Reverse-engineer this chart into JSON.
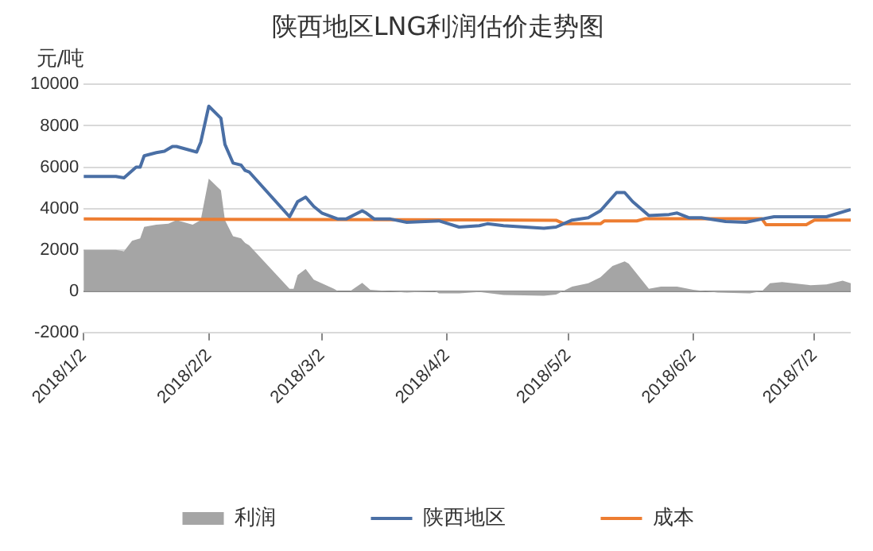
{
  "chart_data": {
    "type": "line",
    "title": "陕西地区LNG利润估价走势图",
    "ylabel": "元/吨",
    "xlim": [
      "2018-01-02",
      "2018-07-11"
    ],
    "xticks": [
      {
        "value": "2018-01-02",
        "label": "2018/1/2"
      },
      {
        "value": "2018-02-02",
        "label": "2018/2/2"
      },
      {
        "value": "2018-03-02",
        "label": "2018/3/2"
      },
      {
        "value": "2018-04-02",
        "label": "2018/4/2"
      },
      {
        "value": "2018-05-02",
        "label": "2018/5/2"
      },
      {
        "value": "2018-06-02",
        "label": "2018/6/2"
      },
      {
        "value": "2018-07-02",
        "label": "2018/7/2"
      }
    ],
    "ylim": [
      -2000,
      10000
    ],
    "yticks": [
      -2000,
      0,
      2000,
      4000,
      6000,
      8000,
      10000
    ],
    "grid": "y",
    "legend": "bottom",
    "series": [
      {
        "name": "利润",
        "type": "area",
        "color": "#a5a5a5",
        "x": [
          "2018-01-02",
          "2018-01-10",
          "2018-01-12",
          "2018-01-14",
          "2018-01-16",
          "2018-01-17",
          "2018-01-20",
          "2018-01-23",
          "2018-01-25",
          "2018-01-29",
          "2018-01-31",
          "2018-02-02",
          "2018-02-05",
          "2018-02-06",
          "2018-02-08",
          "2018-02-10",
          "2018-02-11",
          "2018-02-12",
          "2018-02-22",
          "2018-02-23",
          "2018-02-24",
          "2018-02-26",
          "2018-02-28",
          "2018-03-05",
          "2018-03-06",
          "2018-03-09",
          "2018-03-12",
          "2018-03-14",
          "2018-03-19",
          "2018-03-23",
          "2018-03-30",
          "2018-03-31",
          "2018-04-05",
          "2018-04-10",
          "2018-04-16",
          "2018-04-26",
          "2018-04-29",
          "2018-05-03",
          "2018-05-07",
          "2018-05-10",
          "2018-05-13",
          "2018-05-16",
          "2018-05-17",
          "2018-05-22",
          "2018-05-25",
          "2018-05-29",
          "2018-06-02",
          "2018-06-08",
          "2018-06-16",
          "2018-06-19",
          "2018-06-21",
          "2018-06-24",
          "2018-07-01",
          "2018-07-05",
          "2018-07-09",
          "2018-07-11"
        ],
        "values": [
          2000,
          2000,
          1930,
          2440,
          2550,
          3110,
          3220,
          3260,
          3440,
          3220,
          3440,
          5440,
          4880,
          3440,
          2660,
          2550,
          2330,
          2220,
          110,
          110,
          780,
          1070,
          560,
          110,
          0,
          0,
          400,
          70,
          0,
          -70,
          0,
          -110,
          -110,
          -40,
          -180,
          -220,
          -160,
          220,
          380,
          670,
          1220,
          1440,
          1330,
          110,
          220,
          220,
          70,
          -70,
          -110,
          0,
          380,
          440,
          290,
          330,
          510,
          380
        ]
      },
      {
        "name": "陕西地区",
        "type": "line",
        "color": "#4a6fa5",
        "x": [
          "2018-01-02",
          "2018-01-10",
          "2018-01-12",
          "2018-01-15",
          "2018-01-16",
          "2018-01-17",
          "2018-01-20",
          "2018-01-22",
          "2018-01-24",
          "2018-01-25",
          "2018-01-30",
          "2018-01-31",
          "2018-02-02",
          "2018-02-05",
          "2018-02-06",
          "2018-02-08",
          "2018-02-10",
          "2018-02-11",
          "2018-02-12",
          "2018-02-22",
          "2018-02-24",
          "2018-02-26",
          "2018-02-28",
          "2018-03-02",
          "2018-03-06",
          "2018-03-08",
          "2018-03-12",
          "2018-03-13",
          "2018-03-15",
          "2018-03-19",
          "2018-03-23",
          "2018-03-31",
          "2018-04-05",
          "2018-04-10",
          "2018-04-12",
          "2018-04-16",
          "2018-04-26",
          "2018-04-29",
          "2018-05-03",
          "2018-05-07",
          "2018-05-10",
          "2018-05-13",
          "2018-05-14",
          "2018-05-16",
          "2018-05-18",
          "2018-05-22",
          "2018-05-27",
          "2018-05-29",
          "2018-06-01",
          "2018-06-04",
          "2018-06-10",
          "2018-06-15",
          "2018-06-19",
          "2018-06-22",
          "2018-07-05",
          "2018-07-11"
        ],
        "values": [
          5550,
          5550,
          5480,
          6000,
          6000,
          6550,
          6700,
          6770,
          7000,
          7000,
          6730,
          7200,
          8950,
          8370,
          7100,
          6200,
          6100,
          5840,
          5770,
          3600,
          4330,
          4550,
          4100,
          3780,
          3490,
          3490,
          3890,
          3780,
          3490,
          3490,
          3330,
          3400,
          3100,
          3170,
          3260,
          3170,
          3040,
          3100,
          3440,
          3550,
          3890,
          4550,
          4770,
          4770,
          4330,
          3660,
          3710,
          3780,
          3550,
          3550,
          3370,
          3330,
          3490,
          3600,
          3600,
          3950
        ]
      },
      {
        "name": "成本",
        "type": "line",
        "color": "#ed7d31",
        "x": [
          "2018-01-02",
          "2018-04-12",
          "2018-04-29",
          "2018-05-01",
          "2018-05-10",
          "2018-05-11",
          "2018-05-19",
          "2018-05-21",
          "2018-06-19",
          "2018-06-20",
          "2018-06-30",
          "2018-07-02",
          "2018-07-11"
        ],
        "values": [
          3490,
          3450,
          3430,
          3260,
          3260,
          3400,
          3400,
          3500,
          3500,
          3220,
          3220,
          3440,
          3440
        ]
      }
    ]
  }
}
